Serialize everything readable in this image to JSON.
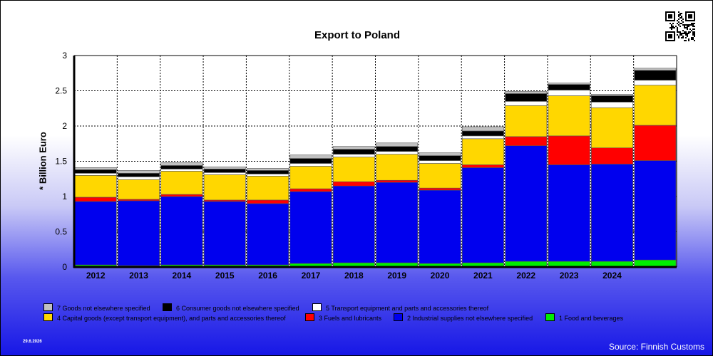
{
  "chart_data": {
    "type": "bar",
    "stacked": true,
    "title": "Export to Poland",
    "ylabel": "* Billion Euro",
    "xlabel": "",
    "ylim": [
      0,
      3
    ],
    "yticks": [
      "0",
      "0.5",
      "1",
      "1.5",
      "2",
      "2.5",
      "3"
    ],
    "categories": [
      "2012",
      "2013",
      "2014",
      "2015",
      "2016",
      "2017",
      "2018",
      "2019",
      "2020",
      "2021",
      "2022",
      "2023",
      "2024",
      ""
    ],
    "grid": "horizontal dashed",
    "legend_position": "bottom",
    "series": [
      {
        "name": "1 Food and beverages",
        "color": "#00ee00",
        "values": [
          0.03,
          0.02,
          0.03,
          0.03,
          0.03,
          0.05,
          0.06,
          0.06,
          0.05,
          0.06,
          0.08,
          0.08,
          0.08,
          0.1
        ]
      },
      {
        "name": "2 Industrial supplies not elsewhere specified",
        "color": "#0000ee",
        "values": [
          0.9,
          0.92,
          0.97,
          0.9,
          0.87,
          1.02,
          1.09,
          1.14,
          1.04,
          1.35,
          1.64,
          1.37,
          1.38,
          1.41
        ]
      },
      {
        "name": "3 Fuels and lubricants",
        "color": "#ff0000",
        "values": [
          0.06,
          0.02,
          0.03,
          0.02,
          0.05,
          0.04,
          0.06,
          0.03,
          0.03,
          0.04,
          0.13,
          0.41,
          0.23,
          0.5
        ]
      },
      {
        "name": "4 Capital goods (except transport equipment), and parts and accessories thereof",
        "color": "#ffd700",
        "values": [
          0.31,
          0.28,
          0.33,
          0.36,
          0.34,
          0.32,
          0.35,
          0.37,
          0.35,
          0.37,
          0.44,
          0.57,
          0.57,
          0.57
        ]
      },
      {
        "name": "5  Transport equipment and parts and accessories thereof",
        "color": "#ffffff",
        "values": [
          0.03,
          0.04,
          0.03,
          0.03,
          0.03,
          0.04,
          0.04,
          0.04,
          0.04,
          0.04,
          0.06,
          0.08,
          0.08,
          0.07
        ]
      },
      {
        "name": "6 Consumer goods not elsewhere specified",
        "color": "#000000",
        "values": [
          0.05,
          0.05,
          0.05,
          0.05,
          0.05,
          0.07,
          0.07,
          0.07,
          0.07,
          0.07,
          0.11,
          0.08,
          0.09,
          0.14
        ]
      },
      {
        "name": "7 Goods not elsewhere specified",
        "color": "#c0c0c0",
        "values": [
          0.03,
          0.04,
          0.04,
          0.03,
          0.03,
          0.05,
          0.04,
          0.05,
          0.04,
          0.06,
          0.03,
          0.02,
          0.02,
          0.03
        ]
      }
    ]
  },
  "legend": {
    "row1": [
      {
        "label": "7 Goods not elsewhere specified",
        "color": "#c0c0c0"
      },
      {
        "label": "6 Consumer goods not elsewhere specified",
        "color": "#000000"
      },
      {
        "label": "5  Transport equipment and parts and accessories thereof",
        "color": "#ffffff"
      }
    ],
    "row2": [
      {
        "label": "4 Capital goods (except transport equipment), and parts and accessories thereof",
        "color": "#ffd700"
      },
      {
        "label": "3 Fuels and lubricants",
        "color": "#ff0000"
      },
      {
        "label": "2 Industrial supplies not elsewhere specified",
        "color": "#0000ee"
      },
      {
        "label": "1 Food and beverages",
        "color": "#00ee00"
      }
    ]
  },
  "footer": {
    "date": "29.6.2026",
    "source": "Source: Finnish Customs"
  },
  "qr_icon": "qr-code-icon"
}
